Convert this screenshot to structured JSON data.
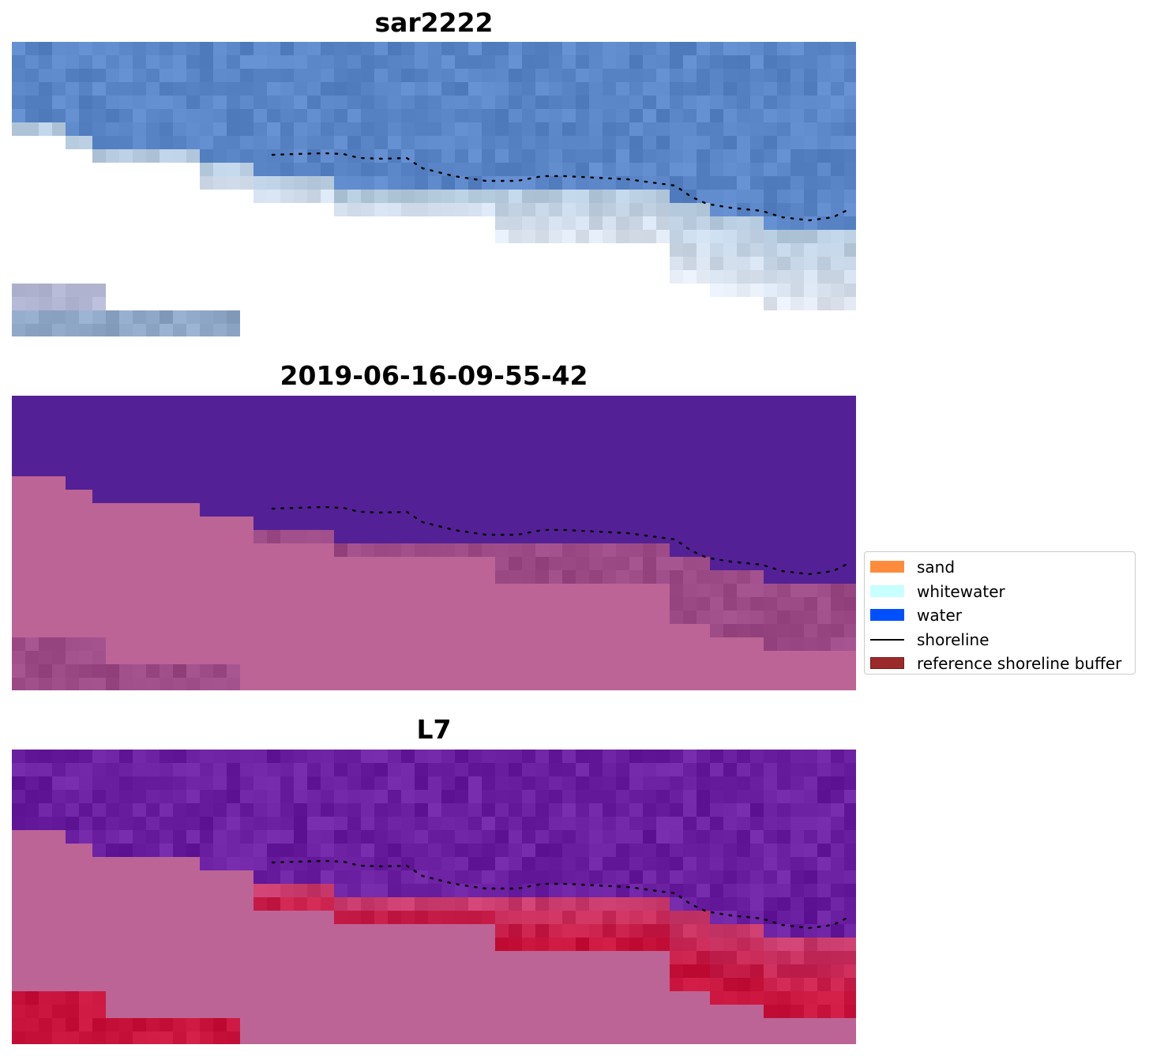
{
  "panels": [
    {
      "title": "sar2222"
    },
    {
      "title": "2019-06-16-09-55-42"
    },
    {
      "title": "L7"
    }
  ],
  "legend": {
    "items": [
      {
        "label": "sand",
        "color": "#ff8c3c",
        "kind": "patch"
      },
      {
        "label": "whitewater",
        "color": "#c8ffff",
        "kind": "patch"
      },
      {
        "label": "water",
        "color": "#0050ff",
        "kind": "patch"
      },
      {
        "label": "shoreline",
        "color": "#000000",
        "kind": "line"
      },
      {
        "label": "reference shoreline buffer",
        "color": "#9b2a2a",
        "kind": "patch",
        "edge": "#7a1a1a"
      }
    ]
  },
  "colors": {
    "rgb_water": "#5a86c8",
    "rgb_surf": "#b8cce0",
    "class_water": "#532195",
    "class_land": "#bc6496",
    "class_mixed": "#9c4a86",
    "index_water": "#6a1ea0",
    "index_land": "#bc6496",
    "index_high": "#c8143c",
    "shoreline": "#000000"
  }
}
